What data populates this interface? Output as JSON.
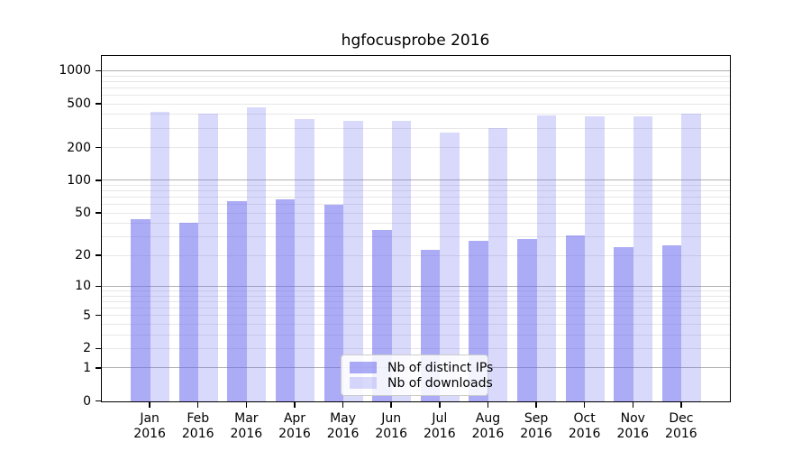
{
  "chart_data": {
    "type": "bar",
    "title": "hgfocusprobe 2016",
    "categories": [
      "Jan 2016",
      "Feb 2016",
      "Mar 2016",
      "Apr 2016",
      "May 2016",
      "Jun 2016",
      "Jul 2016",
      "Aug 2016",
      "Sep 2016",
      "Oct 2016",
      "Nov 2016",
      "Dec 2016"
    ],
    "series": [
      {
        "name": "Nb of distinct IPs",
        "values": [
          44,
          41,
          65,
          68,
          60,
          35,
          23,
          28,
          29,
          31,
          24,
          25
        ],
        "color": "rgba(102,102,238,0.55)"
      },
      {
        "name": "Nb of downloads",
        "values": [
          425,
          414,
          467,
          370,
          354,
          356,
          275,
          306,
          398,
          391,
          389,
          409
        ],
        "color": "rgba(102,102,238,0.25)"
      }
    ],
    "xlabel": "",
    "ylabel": "",
    "yscale": "log1p",
    "yticks": [
      0,
      1,
      2,
      5,
      10,
      20,
      50,
      100,
      200,
      500,
      1000
    ],
    "ylim": [
      0,
      1380
    ],
    "grid": true,
    "legend_position": "lower center",
    "colors": {
      "bar_base": "#6666ee",
      "grid_major": "#b0b0b0",
      "grid_minor": "#e7e7e7",
      "axis": "#000000",
      "text": "#000000",
      "legend_border": "#cccccc",
      "background": "#ffffff"
    }
  }
}
